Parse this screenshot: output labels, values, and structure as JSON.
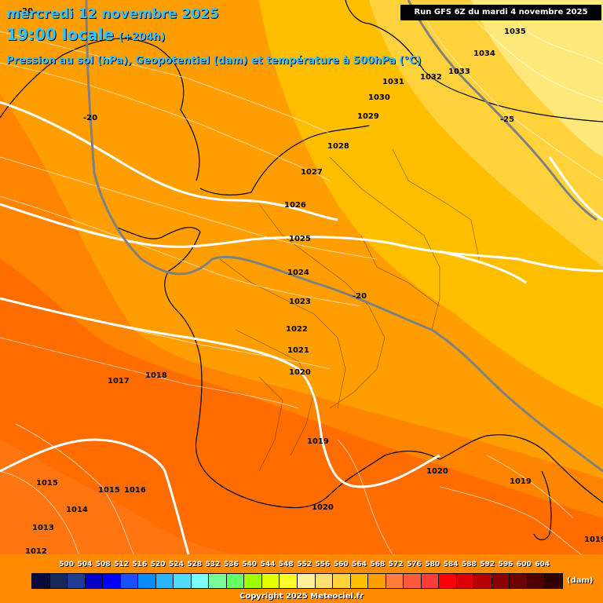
{
  "header": {
    "date": "mercredi 12 novembre 2025",
    "time": "19:00 locale",
    "offset": "(+204h)",
    "description": "Pression au sol (hPa), Geopotentiel (dam) et température à 500hPa (°C)",
    "run": "Run GFS 6Z du mardi 4 novembre 2025"
  },
  "colors": {
    "geo_552_556": "#ffe87a",
    "geo_556_560": "#ffd23c",
    "geo_560_564": "#ffbe00",
    "geo_564_568": "#ff9e00",
    "geo_568_572": "#ff8500",
    "geo_572_576": "#ff6a00",
    "isobar": "#ffffff",
    "isotherm": "#808080",
    "coast": "#000000"
  },
  "isobar_labels": [
    "1035",
    "1034",
    "1033",
    "1032",
    "1031",
    "1030",
    "1029",
    "1028",
    "1027",
    "1026",
    "1025",
    "1024",
    "1023",
    "1022",
    "1021",
    "1020",
    "1019",
    "1020",
    "1020",
    "1019",
    "1019",
    "1018",
    "1017",
    "1016",
    "1015",
    "1015",
    "1014",
    "1013",
    "1012"
  ],
  "isotherm_labels": [
    "-20",
    "-20",
    "-25",
    "-20"
  ],
  "legend": {
    "ticks": [
      "500",
      "504",
      "508",
      "512",
      "516",
      "520",
      "524",
      "528",
      "532",
      "536",
      "540",
      "544",
      "548",
      "552",
      "556",
      "560",
      "564",
      "568",
      "572",
      "576",
      "580",
      "584",
      "588",
      "592",
      "596",
      "600",
      "604"
    ],
    "swatches": [
      "#0a0a3c",
      "#14285a",
      "#1e3c96",
      "#0000c8",
      "#0000ff",
      "#1e50ff",
      "#0a8cff",
      "#28b4ff",
      "#50dcff",
      "#78ffff",
      "#78ff96",
      "#64ff64",
      "#a0ff00",
      "#e6ff00",
      "#ffff28",
      "#fff09a",
      "#ffe06e",
      "#ffd23c",
      "#ffbe00",
      "#ff9e00",
      "#ff7c3c",
      "#ff5a3c",
      "#ff3c3c",
      "#ff0000",
      "#dc0000",
      "#b40000",
      "#8c0000",
      "#6e0000",
      "#500000",
      "#320000"
    ],
    "unit": "(dam)",
    "copyright": "Copyright 2025 Meteociel.fr"
  }
}
